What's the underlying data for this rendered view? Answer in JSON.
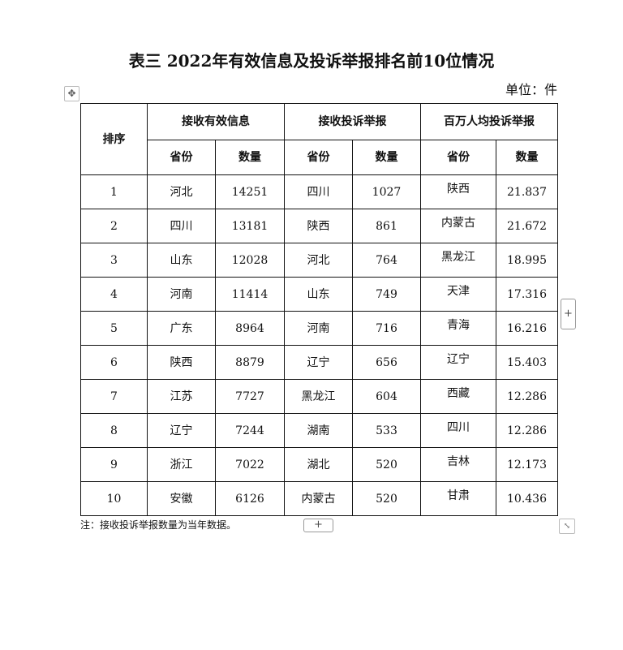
{
  "title": "表三 2022年有效信息及投诉举报排名前10位情况",
  "unit": "单位：件",
  "headers": {
    "rank": "排序",
    "group1": "接收有效信息",
    "group2": "接收投诉举报",
    "group3": "百万人均投诉举报",
    "province": "省份",
    "count": "数量"
  },
  "rows": [
    [
      "1",
      "河北",
      "14251",
      "四川",
      "1027",
      "陕西",
      "21.837"
    ],
    [
      "2",
      "四川",
      "13181",
      "陕西",
      "861",
      "内蒙古",
      "21.672"
    ],
    [
      "3",
      "山东",
      "12028",
      "河北",
      "764",
      "黑龙江",
      "18.995"
    ],
    [
      "4",
      "河南",
      "11414",
      "山东",
      "749",
      "天津",
      "17.316"
    ],
    [
      "5",
      "广东",
      "8964",
      "河南",
      "716",
      "青海",
      "16.216"
    ],
    [
      "6",
      "陕西",
      "8879",
      "辽宁",
      "656",
      "辽宁",
      "15.403"
    ],
    [
      "7",
      "江苏",
      "7727",
      "黑龙江",
      "604",
      "西藏",
      "12.286"
    ],
    [
      "8",
      "辽宁",
      "7244",
      "湖南",
      "533",
      "四川",
      "12.286"
    ],
    [
      "9",
      "浙江",
      "7022",
      "湖北",
      "520",
      "吉林",
      "12.173"
    ],
    [
      "10",
      "安徽",
      "6126",
      "内蒙古",
      "520",
      "甘肃",
      "10.436"
    ]
  ],
  "note": "注：接收投诉举报数量为当年数据。",
  "controls": {
    "add": "+",
    "move": "✥",
    "resize": "⤡"
  }
}
